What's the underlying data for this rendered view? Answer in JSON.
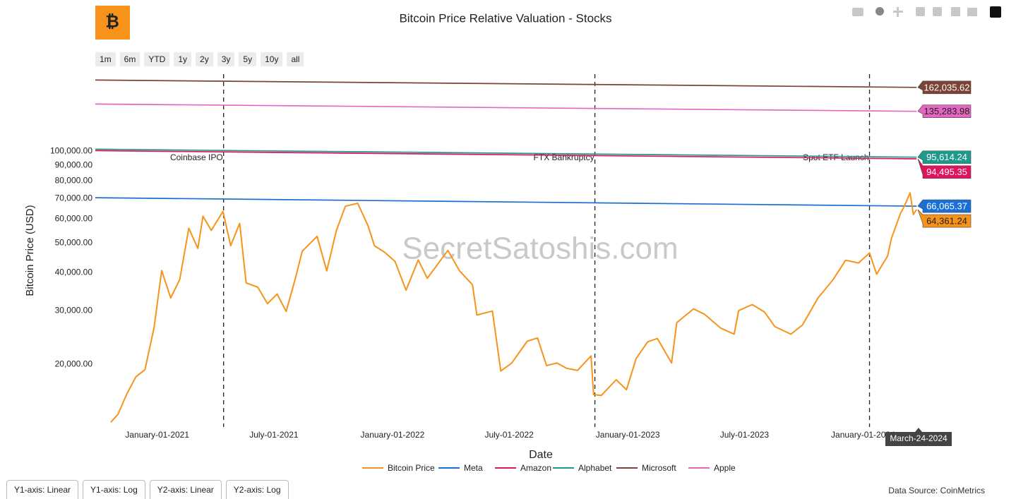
{
  "range_buttons": [
    "1m",
    "6m",
    "YTD",
    "1y",
    "2y",
    "3y",
    "5y",
    "10y",
    "all"
  ],
  "axis_buttons": [
    "Y1-axis: Linear",
    "Y1-axis: Log",
    "Y2-axis: Linear",
    "Y2-axis: Log"
  ],
  "data_source": "Data Source: CoinMetrics",
  "watermark": "SecretSatoshis.com",
  "chart_data": {
    "type": "line",
    "title": "Bitcoin Price Relative Valuation - Stocks",
    "x_label": "Date",
    "y_label": "Bitcoin Price (USD)",
    "y_log": true,
    "grid": false,
    "legend": "bottom",
    "hover_label": "March-24-2024",
    "xlim": [
      "2020-09-27",
      "2024-03-26"
    ],
    "xticks": [
      {
        "value": "2021-01-01",
        "label": "January-01-2021"
      },
      {
        "value": "2021-07-01",
        "label": "July-01-2021"
      },
      {
        "value": "2022-01-01",
        "label": "January-01-2022"
      },
      {
        "value": "2022-07-01",
        "label": "July-01-2022"
      },
      {
        "value": "2023-01-01",
        "label": "January-01-2023"
      },
      {
        "value": "2023-07-01",
        "label": "July-01-2023"
      },
      {
        "value": "2024-01-01",
        "label": "January-01-2024"
      }
    ],
    "ylim": [
      12450,
      184000
    ],
    "yticks": [
      {
        "value": 20000,
        "label": "20,000.00"
      },
      {
        "value": 30000,
        "label": "30,000.00"
      },
      {
        "value": 40000,
        "label": "40,000.00"
      },
      {
        "value": 50000,
        "label": "50,000.00"
      },
      {
        "value": 60000,
        "label": "60,000.00"
      },
      {
        "value": 70000,
        "label": "70,000.00"
      },
      {
        "value": 80000,
        "label": "80,000.00"
      },
      {
        "value": 90000,
        "label": "90,000.00"
      },
      {
        "value": 100000,
        "label": "100,000.00"
      }
    ],
    "annotations": [
      {
        "x": "2021-04-14",
        "text": "Coinbase IPO"
      },
      {
        "x": "2022-11-11",
        "text": "FTX Bankruptcy"
      },
      {
        "x": "2024-01-11",
        "text": "Spot ETF Launch"
      }
    ],
    "series": [
      {
        "name": "Bitcoin Price",
        "color": "#f7931a",
        "label_text_color": "#222",
        "x": [
          "2020-10-21",
          "2020-11-01",
          "2020-11-15",
          "2020-11-29",
          "2020-12-13",
          "2020-12-27",
          "2021-01-08",
          "2021-01-22",
          "2021-02-05",
          "2021-02-19",
          "2021-03-05",
          "2021-03-13",
          "2021-03-26",
          "2021-04-13",
          "2021-04-25",
          "2021-05-09",
          "2021-05-19",
          "2021-06-06",
          "2021-06-21",
          "2021-07-06",
          "2021-07-20",
          "2021-08-03",
          "2021-08-14",
          "2021-09-06",
          "2021-09-21",
          "2021-10-06",
          "2021-10-20",
          "2021-11-08",
          "2021-11-24",
          "2021-12-04",
          "2021-12-20",
          "2022-01-05",
          "2022-01-22",
          "2022-02-10",
          "2022-02-24",
          "2022-03-28",
          "2022-04-15",
          "2022-05-05",
          "2022-05-12",
          "2022-06-05",
          "2022-06-18",
          "2022-07-05",
          "2022-07-29",
          "2022-08-14",
          "2022-08-28",
          "2022-09-13",
          "2022-09-28",
          "2022-10-15",
          "2022-11-05",
          "2022-11-09",
          "2022-11-21",
          "2022-12-14",
          "2022-12-30",
          "2023-01-14",
          "2023-02-01",
          "2023-02-16",
          "2023-03-10",
          "2023-03-18",
          "2023-04-13",
          "2023-04-30",
          "2023-05-25",
          "2023-06-15",
          "2023-06-22",
          "2023-07-13",
          "2023-08-01",
          "2023-08-17",
          "2023-09-11",
          "2023-09-29",
          "2023-10-23",
          "2023-11-15",
          "2023-12-05",
          "2023-12-25",
          "2024-01-11",
          "2024-01-22",
          "2024-02-08",
          "2024-02-14",
          "2024-02-28",
          "2024-03-05",
          "2024-03-14",
          "2024-03-19",
          "2024-03-24"
        ],
        "values": [
          12900,
          13700,
          16000,
          18200,
          19200,
          26300,
          40600,
          33000,
          38000,
          55900,
          48000,
          61200,
          55000,
          63500,
          49000,
          58000,
          37000,
          35800,
          31600,
          34000,
          29800,
          38000,
          47000,
          52600,
          40500,
          55000,
          66000,
          67500,
          57000,
          49000,
          46600,
          43500,
          35000,
          44000,
          38300,
          47300,
          40500,
          36500,
          29000,
          29900,
          19000,
          20200,
          23800,
          24400,
          19800,
          20200,
          19400,
          19100,
          21300,
          15900,
          15800,
          17800,
          16500,
          20900,
          23700,
          24300,
          20200,
          27400,
          30400,
          29200,
          26300,
          25100,
          30000,
          31400,
          29700,
          26600,
          25100,
          26900,
          33000,
          37800,
          43900,
          43000,
          46400,
          39500,
          45300,
          51800,
          62500,
          66000,
          73000,
          62000,
          64361.24
        ],
        "end_label": "64,361.24"
      },
      {
        "name": "Meta",
        "color": "#1a6fd6",
        "label_text_color": "#fff",
        "x": [
          "2020-09-27",
          "2024-03-24"
        ],
        "values": [
          70400,
          66065.37
        ],
        "end_label": "66,065.37"
      },
      {
        "name": "Amazon",
        "color": "#e0135e",
        "label_text_color": "#fff",
        "x": [
          "2020-09-27",
          "2024-03-24"
        ],
        "values": [
          100500,
          94495.35
        ],
        "end_label": "94,495.35"
      },
      {
        "name": "Alphabet",
        "color": "#1f9a8a",
        "label_text_color": "#fff",
        "x": [
          "2020-09-27",
          "2024-03-24"
        ],
        "values": [
          101600,
          95614.24
        ],
        "end_label": "95,614.24"
      },
      {
        "name": "Microsoft",
        "color": "#7b4334",
        "label_text_color": "#fff",
        "x": [
          "2020-09-27",
          "2024-03-24"
        ],
        "values": [
          171300,
          162035.62
        ],
        "end_label": "162,035.62"
      },
      {
        "name": "Apple",
        "color": "#e466c0",
        "label_text_color": "#222",
        "x": [
          "2020-09-27",
          "2024-03-24"
        ],
        "values": [
          142900,
          135283.98
        ],
        "end_label": "135,283.98"
      }
    ]
  }
}
